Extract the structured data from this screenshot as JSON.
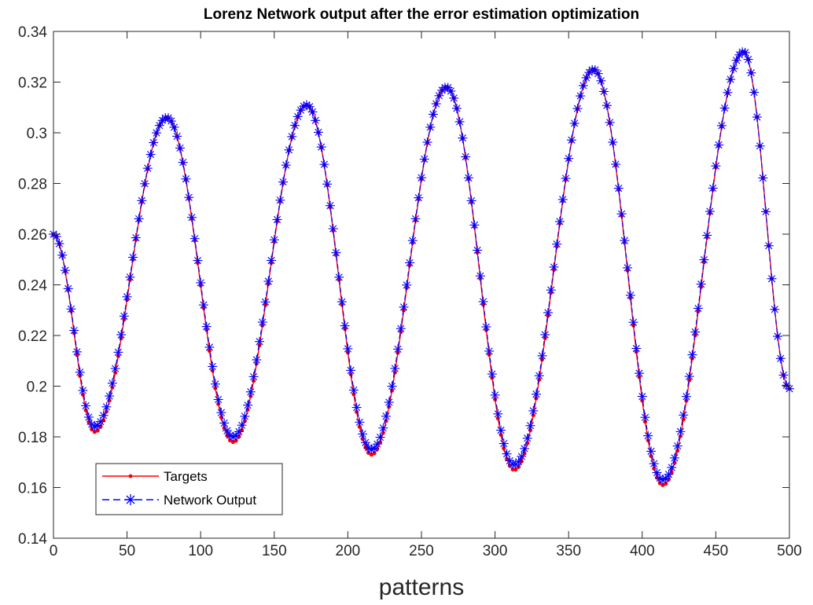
{
  "chart_data": {
    "type": "line",
    "title": "Lorenz Network output after the error estimation optimization",
    "xlabel": "patterns",
    "ylabel": "",
    "xlim": [
      0,
      500
    ],
    "ylim": [
      0.14,
      0.34
    ],
    "xticks": [
      0,
      50,
      100,
      150,
      200,
      250,
      300,
      350,
      400,
      450,
      500
    ],
    "yticks": [
      0.14,
      0.16,
      0.18,
      0.2,
      0.22,
      0.24,
      0.26,
      0.28,
      0.3,
      0.32,
      0.34
    ],
    "xtick_labels": [
      "0",
      "50",
      "100",
      "150",
      "200",
      "250",
      "300",
      "350",
      "400",
      "450",
      "500"
    ],
    "ytick_labels": [
      "0.14",
      "0.16",
      "0.18",
      "0.2",
      "0.22",
      "0.24",
      "0.26",
      "0.28",
      "0.3",
      "0.32",
      "0.34"
    ],
    "grid": false,
    "legend_position": "bottom-left",
    "sample_step": 2,
    "key_points": [
      {
        "x": 0,
        "y": 0.26
      },
      {
        "x": 28,
        "y": 0.182
      },
      {
        "x": 77,
        "y": 0.306
      },
      {
        "x": 122,
        "y": 0.178
      },
      {
        "x": 172,
        "y": 0.311
      },
      {
        "x": 216,
        "y": 0.173
      },
      {
        "x": 267,
        "y": 0.318
      },
      {
        "x": 313,
        "y": 0.167
      },
      {
        "x": 367,
        "y": 0.325
      },
      {
        "x": 414,
        "y": 0.161
      },
      {
        "x": 469,
        "y": 0.332
      },
      {
        "x": 500,
        "y": 0.199
      }
    ],
    "series": [
      {
        "name": "Targets",
        "color": "#ff0000",
        "line_style": "solid",
        "marker": "dot"
      },
      {
        "name": "Network Output",
        "color": "#0000ff",
        "line_style": "dashed",
        "marker": "asterisk",
        "minima_offset": 0.002
      }
    ]
  }
}
